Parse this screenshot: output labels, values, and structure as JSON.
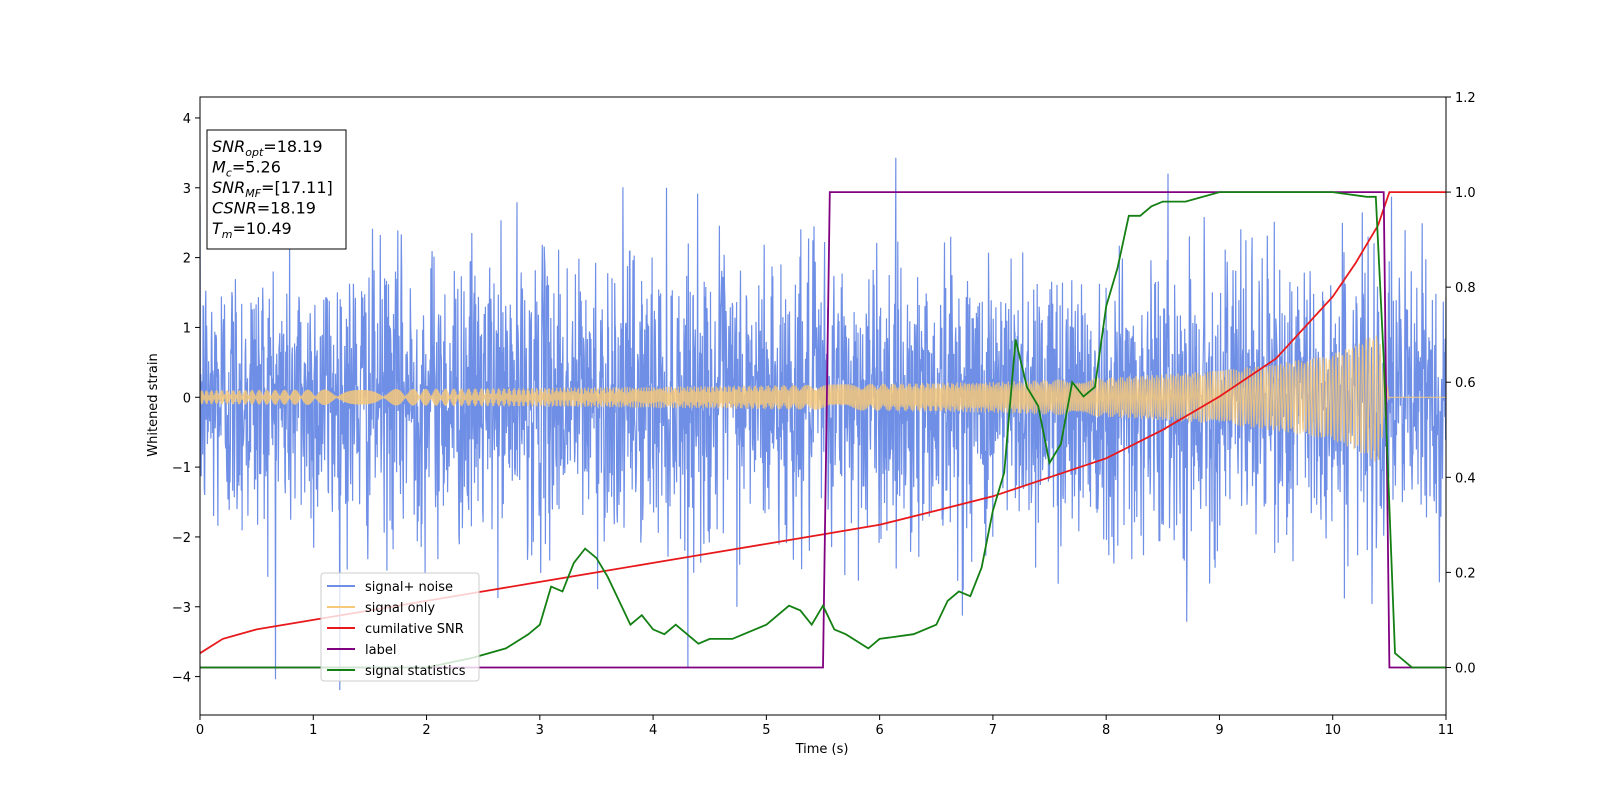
{
  "chart_data": {
    "type": "line",
    "xlabel": "Time (s)",
    "ylabel": "Whitened strain",
    "xlim": [
      0,
      11
    ],
    "ylim": [
      -4.55,
      4.3
    ],
    "y2lim": [
      -0.1,
      1.2
    ],
    "x_ticks": [
      0,
      1,
      2,
      3,
      4,
      5,
      6,
      7,
      8,
      9,
      10,
      11
    ],
    "y_ticks": [
      -4,
      -3,
      -2,
      -1,
      0,
      1,
      2,
      3,
      4
    ],
    "y2_ticks": [
      0.0,
      0.2,
      0.4,
      0.6,
      0.8,
      1.0,
      1.2
    ],
    "legend_position": "lower-left",
    "info_box": [
      {
        "base": "SNR",
        "sub": "opt",
        "value": "=18.19"
      },
      {
        "base": "M",
        "sub": "c",
        "value": "=5.26"
      },
      {
        "base": "SNR",
        "sub": "MF",
        "value": "=[17.11]"
      },
      {
        "base": "CSNR",
        "sub": "",
        "value": "=18.19"
      },
      {
        "base": "T",
        "sub": "m",
        "value": "=10.49"
      }
    ],
    "series": [
      {
        "name": "signal+ noise",
        "color": "#6f8fe6",
        "axis": "left",
        "kind": "noise",
        "noise_sigma": 1.0,
        "noise_clip": [
          -4.2,
          3.9
        ]
      },
      {
        "name": "signal only",
        "color": "#f6c87a",
        "axis": "left",
        "kind": "chirp",
        "amplitude_envelope": {
          "x": [
            0,
            2,
            4,
            5.5,
            7,
            8,
            9,
            9.5,
            10,
            10.2,
            10.4,
            10.5
          ],
          "y": [
            0.1,
            0.12,
            0.15,
            0.18,
            0.22,
            0.28,
            0.38,
            0.48,
            0.62,
            0.75,
            0.95,
            0
          ]
        }
      },
      {
        "name": "cumilative SNR",
        "color": "#e8191c",
        "axis": "right",
        "x": [
          0,
          0.2,
          0.5,
          1,
          1.5,
          2,
          2.5,
          3,
          3.5,
          4,
          4.5,
          5,
          5.5,
          6,
          6.5,
          7,
          7.5,
          8,
          8.5,
          9,
          9.5,
          10,
          10.2,
          10.4,
          10.5,
          11
        ],
        "y": [
          0.03,
          0.06,
          0.08,
          0.1,
          0.12,
          0.14,
          0.16,
          0.18,
          0.2,
          0.22,
          0.24,
          0.26,
          0.28,
          0.3,
          0.33,
          0.36,
          0.4,
          0.44,
          0.5,
          0.57,
          0.65,
          0.78,
          0.85,
          0.93,
          1.0,
          1.0
        ]
      },
      {
        "name": "label",
        "color": "#800080",
        "axis": "right",
        "x": [
          0,
          5.5,
          5.56,
          10.45,
          10.5,
          11
        ],
        "y": [
          0,
          0,
          1,
          1,
          0,
          0
        ]
      },
      {
        "name": "signal statistics",
        "color": "#148014",
        "axis": "right",
        "x": [
          0,
          1,
          2,
          2.4,
          2.7,
          2.9,
          3.0,
          3.1,
          3.2,
          3.3,
          3.4,
          3.5,
          3.6,
          3.7,
          3.8,
          3.9,
          4.0,
          4.1,
          4.2,
          4.3,
          4.4,
          4.5,
          4.7,
          4.9,
          5.0,
          5.2,
          5.3,
          5.4,
          5.5,
          5.6,
          5.7,
          5.9,
          6.0,
          6.3,
          6.5,
          6.6,
          6.7,
          6.8,
          6.9,
          7.0,
          7.1,
          7.2,
          7.3,
          7.4,
          7.5,
          7.6,
          7.7,
          7.8,
          7.9,
          8.0,
          8.1,
          8.2,
          8.3,
          8.4,
          8.5,
          8.7,
          9.0,
          9.5,
          10.0,
          10.3,
          10.38,
          10.45,
          10.55,
          10.7,
          11
        ],
        "y": [
          0.0,
          0.0,
          0.0,
          0.02,
          0.04,
          0.07,
          0.09,
          0.17,
          0.16,
          0.22,
          0.25,
          0.23,
          0.19,
          0.14,
          0.09,
          0.11,
          0.08,
          0.07,
          0.09,
          0.07,
          0.05,
          0.06,
          0.06,
          0.08,
          0.09,
          0.13,
          0.12,
          0.09,
          0.13,
          0.08,
          0.07,
          0.04,
          0.06,
          0.07,
          0.09,
          0.14,
          0.16,
          0.15,
          0.21,
          0.33,
          0.41,
          0.69,
          0.59,
          0.55,
          0.43,
          0.47,
          0.6,
          0.57,
          0.59,
          0.76,
          0.84,
          0.95,
          0.95,
          0.97,
          0.98,
          0.98,
          1.0,
          1.0,
          1.0,
          0.99,
          0.99,
          0.65,
          0.03,
          0.0,
          0.0
        ]
      }
    ]
  }
}
